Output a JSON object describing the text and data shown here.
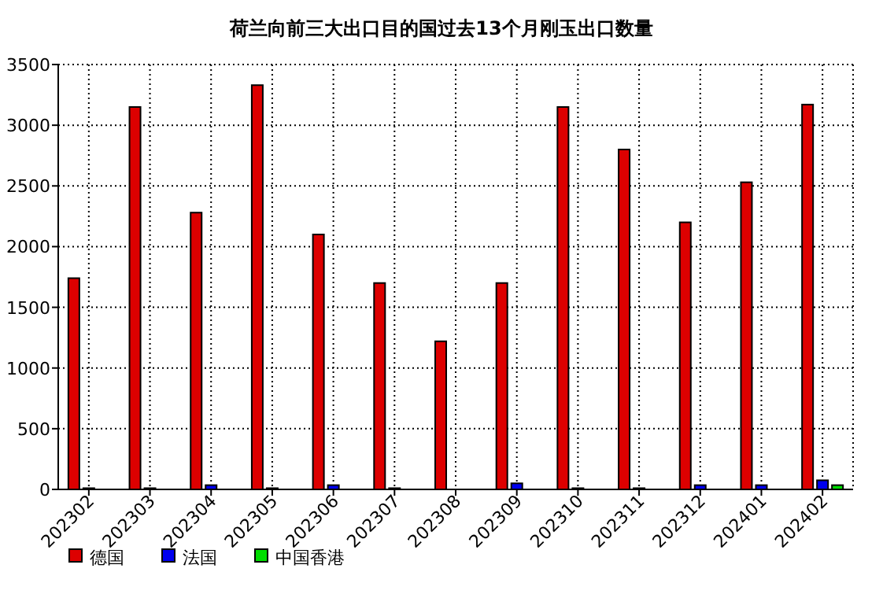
{
  "chart_data": {
    "type": "bar",
    "title": "荷兰向前三大出口目的国过去13个月刚玉出口数量",
    "categories": [
      "202302",
      "202303",
      "202304",
      "202305",
      "202306",
      "202307",
      "202308",
      "202309",
      "202310",
      "202311",
      "202312",
      "202401",
      "202402"
    ],
    "series": [
      {
        "name": "德国",
        "color": "#dd0000",
        "values": [
          1740,
          3150,
          2280,
          3330,
          2100,
          1700,
          1220,
          1700,
          3150,
          2800,
          2200,
          2530,
          3170
        ]
      },
      {
        "name": "法国",
        "color": "#0000ee",
        "values": [
          10,
          10,
          35,
          10,
          35,
          10,
          null,
          50,
          10,
          10,
          35,
          35,
          75
        ]
      },
      {
        "name": "中国香港",
        "color": "#00dd00",
        "values": [
          null,
          null,
          null,
          null,
          null,
          null,
          null,
          null,
          null,
          null,
          null,
          null,
          35
        ]
      }
    ],
    "ylim": [
      0,
      3500
    ],
    "yticks": [
      0,
      500,
      1000,
      1500,
      2000,
      2500,
      3000,
      3500
    ],
    "grid": true,
    "legend": "bottom"
  }
}
